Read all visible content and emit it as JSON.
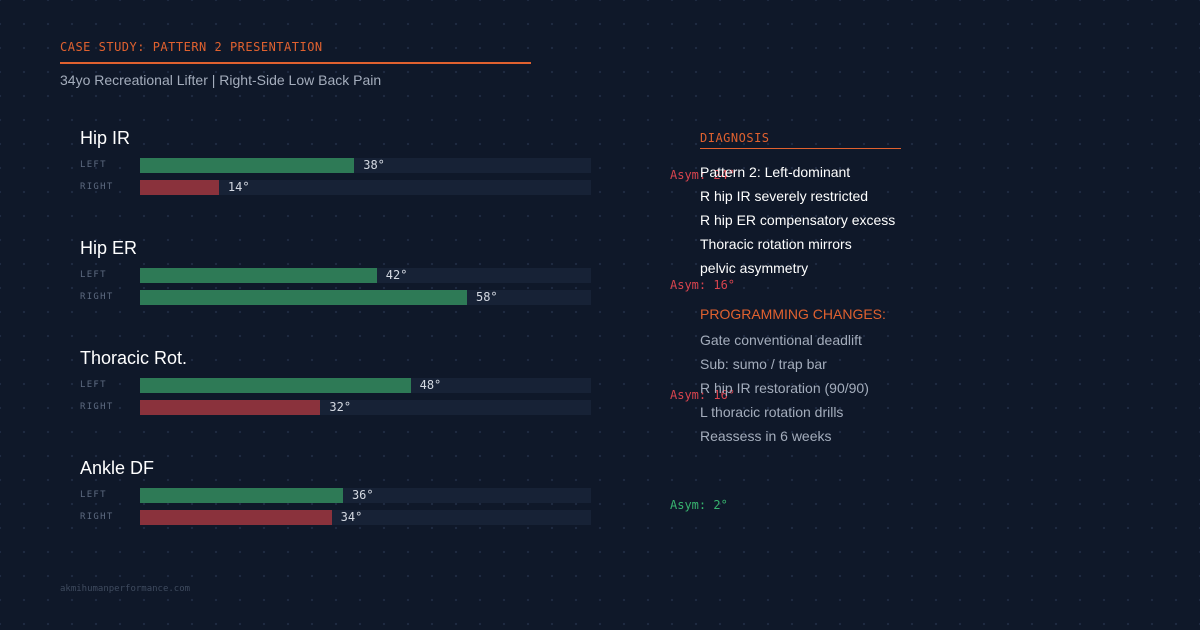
{
  "header": {
    "eyebrow": "CASE STUDY: PATTERN 2 PRESENTATION",
    "subtitle": "34yo Recreational Lifter | Right-Side Low Back Pain"
  },
  "colors": {
    "accent": "#e0612f",
    "good": "#2e7a56",
    "bad": "#8a323c",
    "asym_bad": "#d8444e",
    "asym_good": "#37b36e"
  },
  "chart_data": {
    "type": "bar",
    "orientation": "horizontal",
    "categories": [
      "Hip IR",
      "Hip ER",
      "Thoracic Rot.",
      "Ankle DF"
    ],
    "series": [
      {
        "name": "LEFT",
        "values": [
          38,
          42,
          48,
          36
        ]
      },
      {
        "name": "RIGHT",
        "values": [
          14,
          58,
          32,
          34
        ]
      }
    ],
    "xlim": [
      0,
      80
    ],
    "unit": "°",
    "value_labels": {
      "left": [
        "38°",
        "42°",
        "48°",
        "36°"
      ],
      "right": [
        "14°",
        "58°",
        "32°",
        "34°"
      ]
    },
    "right_status": [
      "bad",
      "good",
      "bad",
      "bad"
    ],
    "asymmetry": [
      {
        "label": "Asym: 24°",
        "status": "bad"
      },
      {
        "label": "Asym: 16°",
        "status": "bad"
      },
      {
        "label": "Asym: 16°",
        "status": "bad"
      },
      {
        "label": "Asym: 2°",
        "status": "good"
      }
    ]
  },
  "diagnosis": {
    "heading": "DIAGNOSIS",
    "lines": [
      "Pattern 2: Left-dominant",
      "R hip IR severely restricted",
      "R hip ER compensatory excess",
      "Thoracic rotation mirrors",
      "pelvic asymmetry"
    ]
  },
  "programming": {
    "heading": "PROGRAMMING CHANGES:",
    "lines": [
      "Gate conventional deadlift",
      "Sub: sumo / trap bar",
      "R hip IR restoration (90/90)",
      "L thoracic rotation drills",
      "Reassess in 6 weeks"
    ]
  },
  "footer": {
    "url": "akmihumanperformance.com"
  }
}
